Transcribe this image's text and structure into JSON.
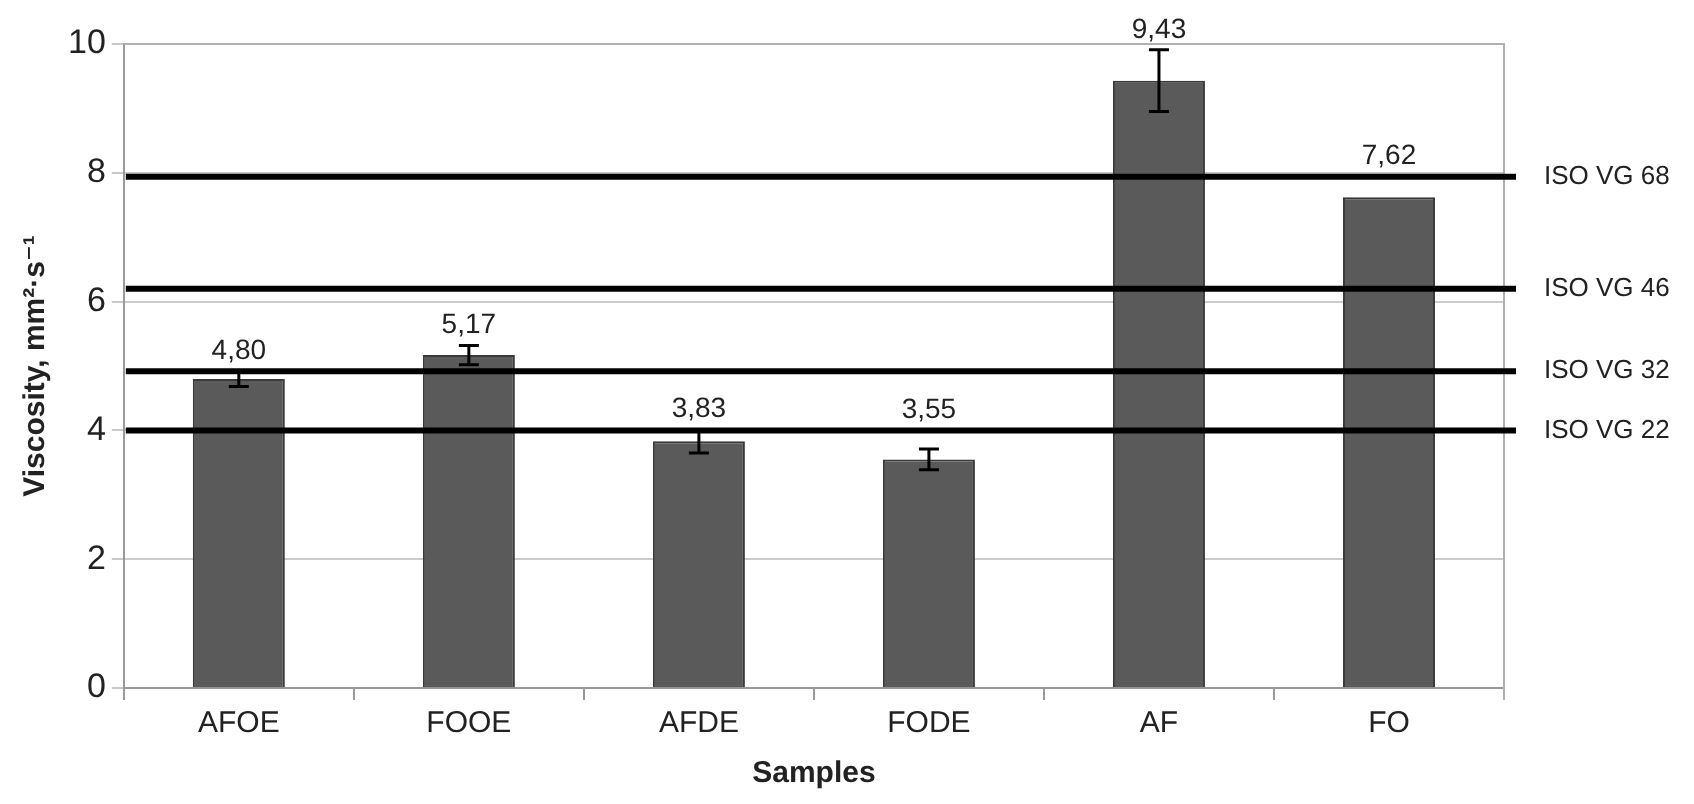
{
  "chart_data": {
    "type": "bar",
    "xlabel": "Samples",
    "ylabel": "Viscosity, mm²·s⁻¹",
    "categories": [
      "AFOE",
      "FOOE",
      "AFDE",
      "FODE",
      "AF",
      "FO"
    ],
    "values": [
      4.8,
      5.17,
      3.83,
      3.55,
      9.43,
      7.62
    ],
    "value_labels": [
      "4,80",
      "5,17",
      "3,83",
      "3,55",
      "9,43",
      "7,62"
    ],
    "errors": [
      0.12,
      0.15,
      0.18,
      0.16,
      0.48,
      null
    ],
    "color": "#5a5a5a",
    "ylim": [
      0,
      10
    ],
    "yticks": [
      0,
      2,
      4,
      6,
      8,
      10
    ],
    "grid": "y",
    "ref_lines": [
      {
        "axis": "y",
        "value": 7.94,
        "label": "ISO VG 68",
        "color": "#000000"
      },
      {
        "axis": "y",
        "value": 6.2,
        "label": "ISO VG 46",
        "color": "#000000"
      },
      {
        "axis": "y",
        "value": 4.92,
        "label": "ISO VG 32",
        "color": "#000000"
      },
      {
        "axis": "y",
        "value": 4.0,
        "label": "ISO VG 22",
        "color": "#000000"
      }
    ]
  }
}
